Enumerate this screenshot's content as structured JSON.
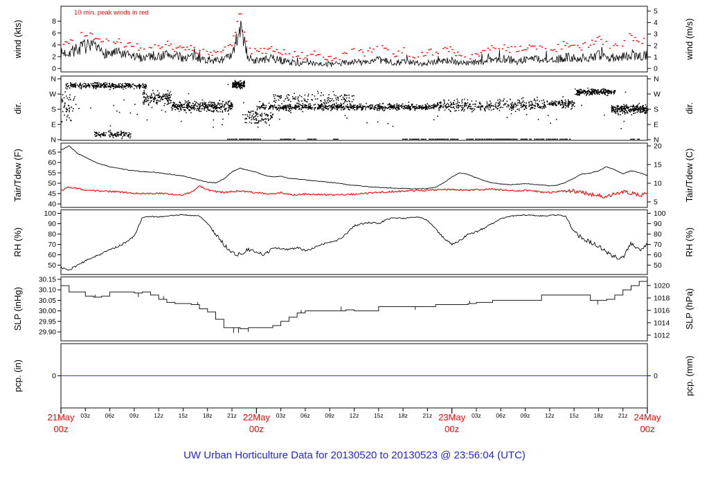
{
  "figure": {
    "title": "UW Urban Horticulture Data for 20130520  to  20130523 @ 23:56:04  (UTC)",
    "title_color": "#2323D6",
    "background": "#FFFFFF"
  },
  "colors": {
    "trace_black": "#000000",
    "peak_red": "#FF0000",
    "tdew_red": "#FF0000",
    "precip_blue": "#3333FF",
    "frame_gray": "#333333",
    "day_label_red": "#FF0000"
  },
  "x_axis": {
    "span_hours": 72,
    "major_ticks": [
      {
        "hour": 0,
        "line1": "21May",
        "line2": "00z"
      },
      {
        "hour": 24,
        "line1": "22May",
        "line2": "00z"
      },
      {
        "hour": 48,
        "line1": "23May",
        "line2": "00z"
      },
      {
        "hour": 72,
        "line1": "24May",
        "line2": "00z"
      }
    ],
    "minor_labels": [
      "03z",
      "06z",
      "09z",
      "12z",
      "15z",
      "18z",
      "21z"
    ]
  },
  "chart_data": [
    {
      "type": "line",
      "name": "wind-speed",
      "ylabel_left": "wind (kts)",
      "ylabel_right": "wind (m/s)",
      "annotation": "10 min. peak winds in red",
      "left_ticks": [
        0,
        2,
        4,
        6,
        8
      ],
      "right_ticks_ms": [
        0,
        1,
        2,
        3,
        4,
        5
      ],
      "ylim_kts": [
        0,
        9.7
      ],
      "avg_kts": [
        2.5,
        2.8,
        3.2,
        3.8,
        3.5,
        2.8,
        2.5,
        2.6,
        2.2,
        2.0,
        1.8,
        2.2,
        2.0,
        2.4,
        2.1,
        1.8,
        2.0,
        1.7,
        1.4,
        1.3,
        1.6,
        2.0,
        7.0,
        1.8,
        1.3,
        1.5,
        1.7,
        1.4,
        1.1,
        0.9,
        0.8,
        1.0,
        0.8,
        0.6,
        0.8,
        1.0,
        1.2,
        1.0,
        1.2,
        1.4,
        1.2,
        1.0,
        1.2,
        1.0,
        0.8,
        1.0,
        1.2,
        1.4,
        1.2,
        1.0,
        0.9,
        1.0,
        1.2,
        1.5,
        1.7,
        1.5,
        1.2,
        1.5,
        1.8,
        1.5,
        1.3,
        1.5,
        1.9,
        1.8,
        1.5,
        2.0,
        2.2,
        1.8,
        1.6,
        2.0,
        2.4,
        2.0,
        2.2
      ],
      "peak_kts": [
        4.0,
        4.5,
        5.2,
        6.0,
        5.5,
        5.0,
        4.5,
        4.5,
        4.0,
        3.6,
        3.4,
        4.0,
        3.6,
        4.0,
        3.5,
        3.0,
        3.4,
        3.0,
        2.6,
        2.5,
        3.0,
        4.0,
        9.4,
        3.4,
        2.6,
        3.0,
        3.4,
        2.9,
        2.5,
        2.4,
        2.0,
        2.4,
        2.0,
        1.6,
        2.0,
        2.4,
        2.9,
        2.5,
        2.9,
        3.4,
        3.0,
        2.5,
        3.0,
        2.5,
        2.1,
        2.5,
        3.0,
        3.4,
        3.0,
        2.5,
        2.1,
        2.5,
        3.0,
        3.4,
        3.9,
        3.4,
        3.0,
        3.4,
        3.9,
        3.4,
        3.0,
        3.5,
        4.4,
        4.0,
        3.5,
        4.4,
        5.0,
        4.0,
        3.6,
        4.4,
        5.4,
        4.5,
        5.0
      ]
    },
    {
      "type": "scatter",
      "name": "wind-direction",
      "ylabel_left": "dir.",
      "ylabel_right": "dir.",
      "tick_labels": [
        "N",
        "W",
        "S",
        "E",
        "N"
      ],
      "tick_degrees": [
        360,
        270,
        180,
        90,
        0
      ],
      "clusters": [
        {
          "t_start": 0,
          "t_end": 1.5,
          "center_deg": 200,
          "spread_deg": 120,
          "points": 40
        },
        {
          "t_start": 0.5,
          "t_end": 10.5,
          "center_deg": 322,
          "spread_deg": 24,
          "points": 300
        },
        {
          "t_start": 4,
          "t_end": 8.5,
          "center_deg": 35,
          "spread_deg": 28,
          "points": 110
        },
        {
          "t_start": 10,
          "t_end": 13.5,
          "center_deg": 250,
          "spread_deg": 60,
          "points": 130
        },
        {
          "t_start": 13.5,
          "t_end": 21,
          "center_deg": 200,
          "spread_deg": 45,
          "points": 320
        },
        {
          "t_start": 21,
          "t_end": 22.5,
          "center_deg": 330,
          "spread_deg": 30,
          "points": 130
        },
        {
          "t_start": 22.5,
          "t_end": 26,
          "center_deg": 140,
          "spread_deg": 70,
          "points": 90
        },
        {
          "t_start": 24,
          "t_end": 46,
          "center_deg": 196,
          "spread_deg": 26,
          "points": 650
        },
        {
          "t_start": 26,
          "t_end": 36,
          "center_deg": 245,
          "spread_deg": 60,
          "points": 130
        },
        {
          "t_start": 46,
          "t_end": 58,
          "center_deg": 205,
          "spread_deg": 50,
          "points": 300
        },
        {
          "t_start": 58,
          "t_end": 63,
          "center_deg": 215,
          "spread_deg": 40,
          "points": 140
        },
        {
          "t_start": 63,
          "t_end": 68,
          "center_deg": 285,
          "spread_deg": 28,
          "points": 220
        },
        {
          "t_start": 67.5,
          "t_end": 72,
          "center_deg": 185,
          "spread_deg": 35,
          "points": 230
        },
        {
          "t_start": 0,
          "t_end": 72,
          "center_deg": 180,
          "spread_deg": 178,
          "points": 90
        }
      ],
      "calm_segments": [
        [
          20.5,
          24.5
        ],
        [
          27,
          29
        ],
        [
          30.2,
          31.5
        ],
        [
          33.5,
          34.2
        ],
        [
          42,
          49
        ],
        [
          49.5,
          56
        ],
        [
          56.5,
          62.5
        ],
        [
          70,
          71
        ]
      ]
    },
    {
      "type": "line",
      "name": "temperature-dewpoint",
      "ylabel_left": "Tair/Tdew (F)",
      "ylabel_right": "Tair/Tdew (C)",
      "left_ticks": [
        40,
        45,
        50,
        55,
        60,
        65
      ],
      "right_ticks_c": [
        5,
        10,
        15,
        20
      ],
      "ylim_f": [
        38.3,
        69.3
      ],
      "series": [
        {
          "name": "Tair",
          "color": "#000000",
          "values_f": [
            66,
            68,
            64.5,
            62.5,
            60.5,
            59,
            58,
            57.2,
            56.5,
            56,
            55.6,
            55.4,
            55,
            54.5,
            54,
            53.5,
            52.5,
            51.5,
            50.5,
            50.2,
            52,
            55.5,
            57.3,
            56.2,
            55.3,
            53.8,
            53,
            53.4,
            52.4,
            52,
            51.6,
            51.2,
            50.8,
            50.4,
            50,
            49.4,
            49,
            48.6,
            48.3,
            48,
            47.8,
            47.6,
            47.5,
            47.4,
            47.3,
            47.4,
            48,
            50.2,
            53,
            55,
            54.2,
            52.6,
            51.2,
            50.2,
            49.6,
            49.3,
            49.5,
            49.8,
            49.5,
            49.1,
            48.8,
            49,
            50.5,
            52.5,
            54.5,
            54.8,
            56,
            58,
            56.5,
            54.5,
            56,
            55.2,
            53.8
          ]
        },
        {
          "name": "Tdew",
          "color": "#FF0000",
          "values_f": [
            46.5,
            48.2,
            47.5,
            46.8,
            46.4,
            46.2,
            46.0,
            45.8,
            45.5,
            45.2,
            45.0,
            45.0,
            45.2,
            45.0,
            44.3,
            44.5,
            45.5,
            48.6,
            46.8,
            46.0,
            45.5,
            46.0,
            46.3,
            45.8,
            45.5,
            45.2,
            44.8,
            45.4,
            44.6,
            44.4,
            44.8,
            44.4,
            44.6,
            44.4,
            44.5,
            44.6,
            44.8,
            45.0,
            45.2,
            45.6,
            45.8,
            46.0,
            46.2,
            46.4,
            46.5,
            46.6,
            46.8,
            46.9,
            47.0,
            46.8,
            46.6,
            46.8,
            47.0,
            47.2,
            46.8,
            46.5,
            46.3,
            46.5,
            46.2,
            45.8,
            45.5,
            46.0,
            46.5,
            46.2,
            45.5,
            44.5,
            44.0,
            43.5,
            44.8,
            45.8,
            45.2,
            44.2,
            45.0
          ]
        }
      ]
    },
    {
      "type": "line",
      "name": "relative-humidity",
      "ylabel_left": "RH (%)",
      "ylabel_right": "RH (%)",
      "left_ticks": [
        50,
        60,
        70,
        80,
        90,
        100
      ],
      "right_ticks": [
        50,
        60,
        70,
        80,
        90,
        100
      ],
      "ylim": [
        44,
        103
      ],
      "values_pct": [
        48,
        45,
        50,
        54,
        58,
        61,
        65,
        68,
        72,
        78,
        96,
        97,
        96.5,
        97.5,
        98,
        98.5,
        98,
        97.5,
        90,
        80,
        70,
        62,
        60,
        65,
        62,
        60,
        67,
        66,
        65,
        67,
        64,
        66,
        70,
        72,
        74,
        80,
        88,
        90,
        91,
        90,
        94,
        96,
        95,
        96,
        96.5,
        93,
        85,
        76,
        70,
        74,
        80,
        82,
        86,
        90,
        95,
        97,
        98,
        98.5,
        98,
        97.5,
        98,
        98.5,
        97,
        82,
        76,
        72,
        68,
        63,
        58,
        57,
        71,
        64,
        70
      ]
    },
    {
      "type": "step",
      "name": "sea-level-pressure",
      "ylabel_left": "SLP (inHg)",
      "ylabel_right": "SLP (hPa)",
      "left_ticks": [
        "29.90",
        "29.95",
        "30.00",
        "30.05",
        "30.10",
        "30.15"
      ],
      "right_ticks_hpa": [
        1012,
        1014,
        1016,
        1018,
        1020
      ],
      "ylim_inhg": [
        29.86,
        30.16
      ],
      "values_inhg": [
        30.12,
        30.09,
        30.09,
        30.07,
        30.065,
        30.07,
        30.09,
        30.09,
        30.09,
        30.085,
        30.09,
        30.075,
        30.055,
        30.04,
        30.035,
        30.035,
        30.03,
        30.01,
        29.995,
        29.96,
        29.92,
        29.92,
        29.915,
        29.92,
        29.92,
        29.92,
        29.93,
        29.95,
        29.97,
        29.99,
        30.0,
        30.0,
        30.0,
        30.0,
        30.0,
        30.005,
        30.0,
        30.0,
        30.0,
        30.02,
        30.02,
        30.02,
        30.02,
        30.02,
        30.02,
        30.02,
        30.03,
        30.03,
        30.03,
        30.03,
        30.035,
        30.04,
        30.04,
        30.05,
        30.05,
        30.05,
        30.05,
        30.05,
        30.05,
        30.075,
        30.075,
        30.075,
        30.075,
        30.075,
        30.075,
        30.05,
        30.05,
        30.055,
        30.075,
        30.1,
        30.12,
        30.14,
        30.15
      ],
      "spikes": [
        {
          "hour": 4.2,
          "delta": 0.012
        },
        {
          "hour": 9.5,
          "delta": -0.02
        },
        {
          "hour": 12.6,
          "delta": 0.015
        },
        {
          "hour": 16.8,
          "delta": 0.012
        },
        {
          "hour": 21.2,
          "delta": -0.025
        },
        {
          "hour": 21.8,
          "delta": -0.025
        },
        {
          "hour": 23.0,
          "delta": -0.02
        },
        {
          "hour": 29.5,
          "delta": 0.015
        },
        {
          "hour": 34.4,
          "delta": 0.02
        },
        {
          "hour": 43.5,
          "delta": -0.015
        },
        {
          "hour": 50.2,
          "delta": 0.012
        },
        {
          "hour": 65.9,
          "delta": -0.02
        }
      ]
    },
    {
      "type": "line",
      "name": "precipitation",
      "ylabel_left": "pcp. (in)",
      "ylabel_right": "pcp. (mm)",
      "left_tick": "0",
      "right_tick": "0",
      "values_in": [
        0,
        0
      ],
      "note_constant_value": 0
    }
  ]
}
